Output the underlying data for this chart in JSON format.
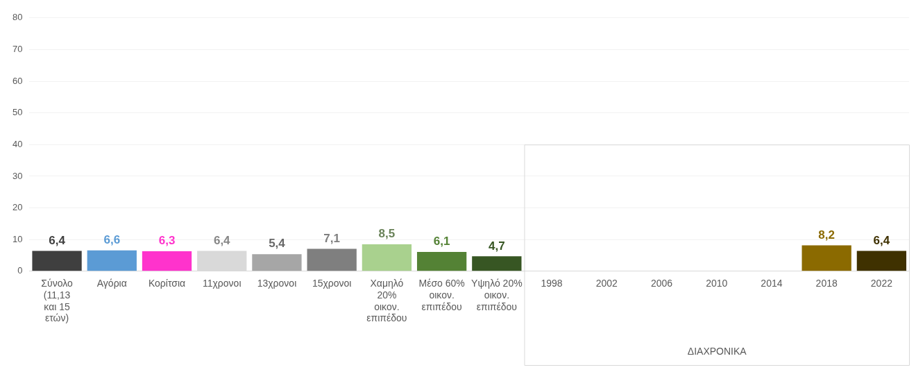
{
  "chart_data": {
    "type": "bar",
    "categories": [
      "Σύνολο (11,13 και 15 ετών)",
      "Αγόρια",
      "Κορίτσια",
      "11χρονοι",
      "13χρονοι",
      "15χρονοι",
      "Χαμηλό 20% οικον. επιπέδου",
      "Μέσο 60% οικον. επιπέδου",
      "Υψηλό 20% οικον. επιπέδου",
      "1998",
      "2002",
      "2006",
      "2010",
      "2014",
      "2018",
      "2022"
    ],
    "values": [
      6.4,
      6.6,
      6.3,
      6.4,
      5.4,
      7.1,
      8.5,
      6.1,
      4.7,
      null,
      null,
      null,
      null,
      null,
      8.2,
      6.4
    ],
    "colors": [
      "#3f3f3f",
      "#5b9bd5",
      "#ff33cc",
      "#d9d9d9",
      "#a6a6a6",
      "#7f7f7f",
      "#a9d18e",
      "#548235",
      "#375623",
      "#8b6a00",
      "#8b6a00",
      "#8b6a00",
      "#8b6a00",
      "#8b6a00",
      "#8b6a00",
      "#3f3100"
    ],
    "value_labels": [
      "6,4",
      "6,6",
      "6,3",
      "6,4",
      "5,4",
      "7,1",
      "8,5",
      "6,1",
      "4,7",
      null,
      null,
      null,
      null,
      null,
      "8,2",
      "6,4"
    ],
    "ylim": [
      0,
      80
    ],
    "yticks": [
      0,
      10,
      20,
      30,
      40,
      50,
      60,
      70,
      80
    ],
    "grid": "y",
    "legend": false,
    "annotations": [
      "ΔΙΑΧΡΟΝΙΚΑ"
    ]
  }
}
